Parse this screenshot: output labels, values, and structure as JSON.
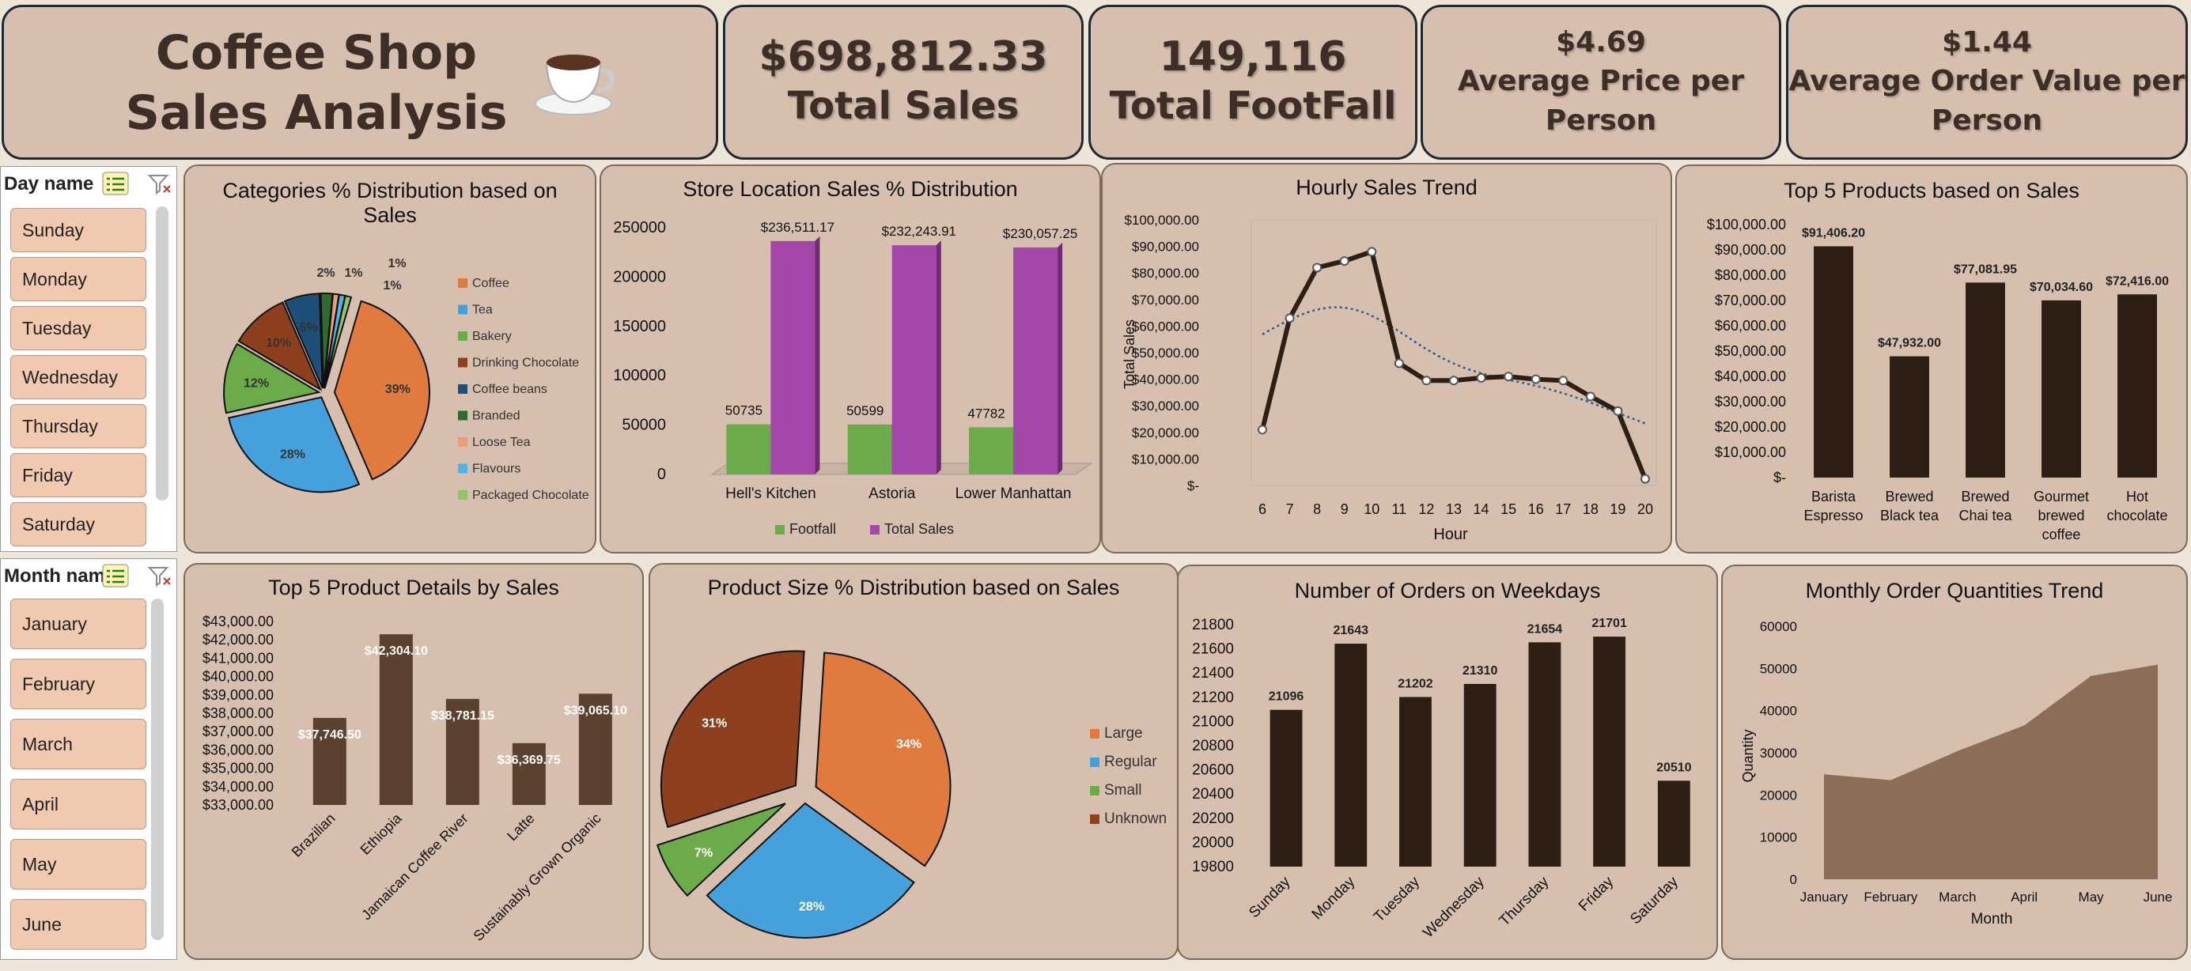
{
  "header": {
    "title_line1": "Coffee Shop",
    "title_line2": "Sales Analysis",
    "coffee_icon": "coffee-cup-icon"
  },
  "kpis": {
    "total_sales": {
      "value": "$698,812.33",
      "label": "Total Sales"
    },
    "total_footfall": {
      "value": "149,116",
      "label": "Total FootFall"
    },
    "avg_price": {
      "value": "$4.69",
      "label_line1": "Average Price per",
      "label_line2": "Person"
    },
    "avg_order": {
      "value": "$1.44",
      "label_line1": "Average Order Value per",
      "label_line2": "Person"
    }
  },
  "slicers": {
    "day": {
      "title": "Day name",
      "items": [
        "Sunday",
        "Monday",
        "Tuesday",
        "Wednesday",
        "Thursday",
        "Friday",
        "Saturday"
      ]
    },
    "month": {
      "title": "Month name",
      "items": [
        "January",
        "February",
        "March",
        "April",
        "May",
        "June"
      ]
    }
  },
  "colors": {
    "dark_brown": "#2e1f14",
    "mid_brown": "#5b4130",
    "area_brown": "#8c6e58",
    "green": "#6cab4a",
    "purple": "#a348a8",
    "orange": "#e07a3e",
    "blue": "#45a0dc",
    "rust": "#8e3f1e"
  },
  "chart_data": [
    {
      "id": "categories",
      "type": "pie",
      "title_line1": "Categories % Distribution based on",
      "title_line2": "Sales",
      "legend": "right",
      "categories": [
        "Coffee",
        "Tea",
        "Bakery",
        "Drinking Chocolate",
        "Coffee beans",
        "Branded",
        "Loose Tea",
        "Flavours",
        "Packaged Chocolate"
      ],
      "values": [
        39,
        28,
        12,
        10,
        6,
        2,
        1,
        1,
        1
      ],
      "labels": [
        "39%",
        "28%",
        "12%",
        "10%",
        "6%",
        "2%",
        "1%",
        "1%",
        "1%"
      ],
      "colors": [
        "#e07a3e",
        "#45a0dc",
        "#6cab4a",
        "#8e3f1e",
        "#1f4e79",
        "#2e6b2e",
        "#e8a07a",
        "#4fb3e8",
        "#8fc46a"
      ]
    },
    {
      "id": "store",
      "type": "bar",
      "title": "Store Location Sales % Distribution",
      "categories": [
        "Hell's Kitchen",
        "Astoria",
        "Lower Manhattan"
      ],
      "series": [
        {
          "name": "Footfall",
          "values": [
            50735,
            50599,
            47782
          ],
          "labels": [
            "50735",
            "50599",
            "47782"
          ]
        },
        {
          "name": "Total Sales",
          "values": [
            236511.17,
            232243.91,
            230057.25
          ],
          "labels": [
            "$236,511.17",
            "$232,243.91",
            "$230,057.25"
          ]
        }
      ],
      "yticks": [
        "0",
        "50000",
        "100000",
        "150000",
        "200000",
        "250000"
      ],
      "ylim": [
        0,
        250000
      ],
      "legend": "bottom"
    },
    {
      "id": "hourly",
      "type": "line",
      "title": "Hourly Sales Trend",
      "xlabel": "Hour",
      "ylabel": "Total Sales",
      "x": [
        6,
        7,
        8,
        9,
        10,
        11,
        12,
        13,
        14,
        15,
        16,
        17,
        18,
        19,
        20
      ],
      "values": [
        21000,
        63000,
        82000,
        84500,
        88000,
        46000,
        39500,
        39500,
        40500,
        41000,
        40000,
        39500,
        33500,
        28000,
        2500
      ],
      "yticks": [
        "$-",
        "$10,000.00",
        "$20,000.00",
        "$30,000.00",
        "$40,000.00",
        "$50,000.00",
        "$60,000.00",
        "$70,000.00",
        "$80,000.00",
        "$90,000.00",
        "$100,000.00"
      ],
      "ylim": [
        0,
        100000
      ],
      "trendline": "polynomial dotted"
    },
    {
      "id": "top5products",
      "type": "bar",
      "title": "Top 5 Products based on Sales",
      "categories": [
        "Barista Espresso",
        "Brewed Black tea",
        "Brewed Chai tea",
        "Gourmet brewed coffee",
        "Hot chocolate"
      ],
      "category_lines": [
        [
          "Barista",
          "Espresso"
        ],
        [
          "Brewed",
          "Black tea"
        ],
        [
          "Brewed",
          "Chai tea"
        ],
        [
          "Gourmet",
          "brewed",
          "coffee"
        ],
        [
          "Hot",
          "chocolate"
        ]
      ],
      "values": [
        91406.2,
        47932.0,
        77081.95,
        70034.6,
        72416.0
      ],
      "labels": [
        "$91,406.20",
        "$47,932.00",
        "$77,081.95",
        "$70,034.60",
        "$72,416.00"
      ],
      "yticks": [
        "$-",
        "$10,000.00",
        "$20,000.00",
        "$30,000.00",
        "$40,000.00",
        "$50,000.00",
        "$60,000.00",
        "$70,000.00",
        "$80,000.00",
        "$90,000.00",
        "$100,000.00"
      ],
      "ylim": [
        0,
        100000
      ]
    },
    {
      "id": "top5details",
      "type": "bar",
      "title": "Top 5 Product Details by Sales",
      "categories": [
        "Brazilian",
        "Ethiopia",
        "Jamaican Coffee River",
        "Latte",
        "Sustainably Grown Organic"
      ],
      "values": [
        37746.5,
        42304.1,
        38781.15,
        36369.75,
        39065.1
      ],
      "labels": [
        "$37,746.50",
        "$42,304.10",
        "$38,781.15",
        "$36,369.75",
        "$39,065.10"
      ],
      "yticks": [
        "$33,000.00",
        "$34,000.00",
        "$35,000.00",
        "$36,000.00",
        "$37,000.00",
        "$38,000.00",
        "$39,000.00",
        "$40,000.00",
        "$41,000.00",
        "$42,000.00",
        "$43,000.00"
      ],
      "ylim": [
        33000,
        43000
      ]
    },
    {
      "id": "size",
      "type": "pie",
      "title": "Product Size % Distribution based on Sales",
      "legend": "right",
      "categories": [
        "Large",
        "Regular",
        "Small",
        "Unknown"
      ],
      "values": [
        34,
        28,
        7,
        31
      ],
      "labels": [
        "34%",
        "28%",
        "7%",
        "31%"
      ],
      "colors": [
        "#e07a3e",
        "#45a0dc",
        "#6cab4a",
        "#8e3f1e"
      ]
    },
    {
      "id": "weekday",
      "type": "bar",
      "title": "Number of Orders on Weekdays",
      "categories": [
        "Sunday",
        "Monday",
        "Tuesday",
        "Wednesday",
        "Thursday",
        "Friday",
        "Saturday"
      ],
      "values": [
        21096,
        21643,
        21202,
        21310,
        21654,
        21701,
        20510
      ],
      "labels": [
        "21096",
        "21643",
        "21202",
        "21310",
        "21654",
        "21701",
        "20510"
      ],
      "yticks": [
        "19800",
        "20000",
        "20200",
        "20400",
        "20600",
        "20800",
        "21000",
        "21200",
        "21400",
        "21600",
        "21800"
      ],
      "ylim": [
        19800,
        21800
      ]
    },
    {
      "id": "monthly",
      "type": "area",
      "title": "Monthly Order Quantities Trend",
      "xlabel": "Month",
      "ylabel": "Quantity",
      "categories": [
        "January",
        "February",
        "March",
        "April",
        "May",
        "June"
      ],
      "values": [
        24900,
        23500,
        30400,
        36500,
        48200,
        50900
      ],
      "yticks": [
        "0",
        "10000",
        "20000",
        "30000",
        "40000",
        "50000",
        "60000"
      ],
      "ylim": [
        0,
        60000
      ]
    }
  ]
}
